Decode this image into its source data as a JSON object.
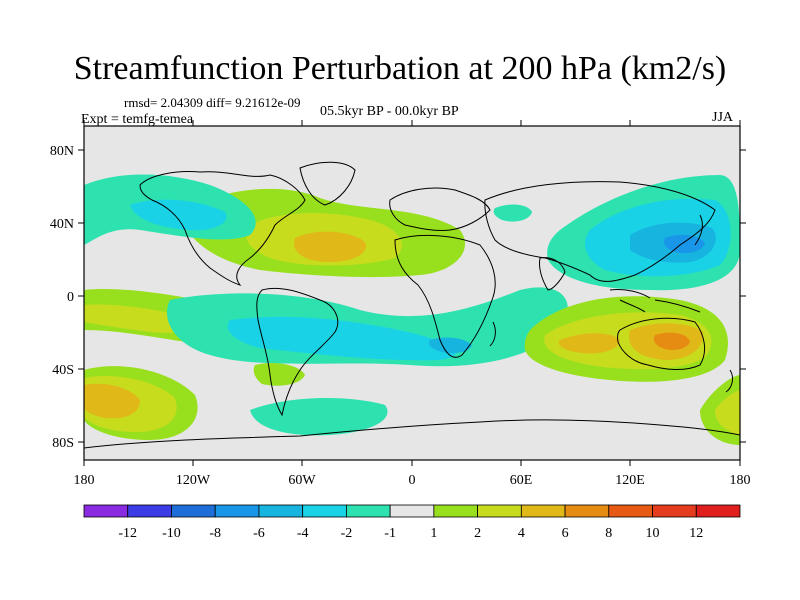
{
  "title": "Streamfunction Perturbation at 200 hPa (km2/s)",
  "stats": "rmsd= 2.04309 diff= 9.21612e-09",
  "experiment": "Expt = temfg-temea",
  "period": "05.5kyr BP - 00.0kyr BP",
  "season": "JJA",
  "chart_data": {
    "type": "map",
    "title": "Streamfunction Perturbation at 200 hPa (km2/s)",
    "x_ticks": [
      "180",
      "120W",
      "60W",
      "0",
      "60E",
      "120E",
      "180"
    ],
    "y_ticks": [
      "80N",
      "40N",
      "0",
      "40S",
      "80S"
    ],
    "lon_range": [
      -180,
      180
    ],
    "lat_range": [
      -90,
      90
    ],
    "colorbar": {
      "levels": [
        "-12",
        "-10",
        "-8",
        "-6",
        "-4",
        "-2",
        "-1",
        "1",
        "2",
        "4",
        "6",
        "8",
        "10",
        "12"
      ],
      "colors": [
        "#8a2be2",
        "#3c3ce6",
        "#1e6ed9",
        "#1a96e8",
        "#18b4e0",
        "#1ad2e6",
        "#2ee2b0",
        "#e6e6e6",
        "#98e01e",
        "#c8dc1e",
        "#e0b818",
        "#e68c12",
        "#e65a14",
        "#e63c1e",
        "#e01e1e"
      ]
    },
    "regions": [
      {
        "kind": "negative",
        "level": "-4",
        "lon": 150,
        "lat": 30,
        "desc": "NW Pacific/East Asia anticyclone"
      },
      {
        "kind": "negative",
        "level": "-2",
        "lon": -30,
        "lat": -20,
        "desc": "tropical South Atlantic"
      },
      {
        "kind": "positive",
        "level": "6",
        "lon": -40,
        "lat": 27,
        "desc": "subtropical North Atlantic"
      },
      {
        "kind": "positive",
        "level": "6",
        "lon": 135,
        "lat": -25,
        "desc": "Australia"
      },
      {
        "kind": "positive",
        "level": "4",
        "lon": -170,
        "lat": -55,
        "desc": "South Pacific high latitudes"
      }
    ]
  }
}
